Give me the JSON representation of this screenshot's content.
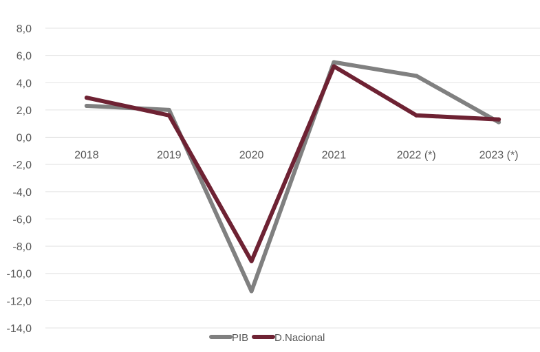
{
  "chart_data": {
    "type": "line",
    "categories": [
      "2018",
      "2019",
      "2020",
      "2021",
      "2022 (*)",
      "2023 (*)"
    ],
    "series": [
      {
        "name": "PIB",
        "values": [
          2.3,
          2.0,
          -11.3,
          5.5,
          4.5,
          1.1
        ],
        "color": "#808080"
      },
      {
        "name": "D.Nacional",
        "values": [
          2.9,
          1.6,
          -9.1,
          5.2,
          1.6,
          1.3
        ],
        "color": "#6e2233"
      }
    ],
    "yticks": [
      "8,0",
      "6,0",
      "4,0",
      "2,0",
      "0,0",
      "-2,0",
      "-4,0",
      "-6,0",
      "-8,0",
      "-10,0",
      "-12,0",
      "-14,0"
    ],
    "ylim": [
      -14,
      8
    ],
    "grid": true,
    "legend_position": "bottom"
  }
}
